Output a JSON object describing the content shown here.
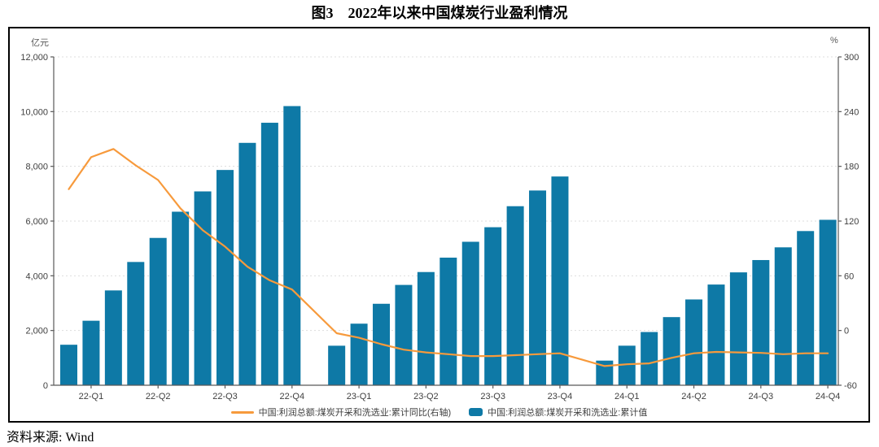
{
  "title": "图3　2022年以来中国煤炭行业盈利情况",
  "source_note": "资料来源: Wind",
  "legend": {
    "line_label": "中国:利润总额:煤炭开采和洗选业:累计同比(右轴)",
    "bar_label": "中国:利润总额:煤炭开采和洗选业:累计值"
  },
  "axes": {
    "left_unit": "亿元",
    "right_unit": "%",
    "left_tick_labels": [
      "0",
      "2,000",
      "4,000",
      "6,000",
      "8,000",
      "10,000",
      "12,000"
    ],
    "right_tick_labels": [
      "-60",
      "0",
      "60",
      "120",
      "180",
      "240",
      "300"
    ],
    "x_tick_labels": [
      "22-Q1",
      "22-Q2",
      "22-Q3",
      "22-Q4",
      "23-Q1",
      "23-Q2",
      "23-Q3",
      "23-Q4",
      "24-Q1",
      "24-Q2",
      "24-Q3",
      "24-Q4"
    ]
  },
  "colors": {
    "bar": "#0E79A6",
    "line": "#F79A3C",
    "grid": "#DDDDDD",
    "spine": "#595959",
    "tick_text": "#404040",
    "frame_border": "#000000"
  },
  "chart_data": {
    "type": "bar",
    "subtype": "bar+line combo, monthly cumulative values with quarterly x ticks",
    "x": [
      "2022-02",
      "2022-03",
      "2022-04",
      "2022-05",
      "2022-06",
      "2022-07",
      "2022-08",
      "2022-09",
      "2022-10",
      "2022-11",
      "2022-12",
      "2023-02",
      "2023-03",
      "2023-04",
      "2023-05",
      "2023-06",
      "2023-07",
      "2023-08",
      "2023-09",
      "2023-10",
      "2023-11",
      "2023-12",
      "2024-02",
      "2024-03",
      "2024-04",
      "2024-05",
      "2024-06",
      "2024-07",
      "2024-08",
      "2024-09",
      "2024-10",
      "2024-11",
      "2024-12"
    ],
    "series": [
      {
        "name": "中国:利润总额:煤炭开采和洗选业:累计值",
        "type": "bar",
        "axis": "left",
        "unit": "亿元",
        "values": [
          1480,
          2357,
          3465,
          4505,
          5384,
          6342,
          7084,
          7867,
          8858,
          9593,
          10202,
          1444,
          2250,
          2977,
          3666,
          4137,
          4663,
          5243,
          5775,
          6543,
          7117,
          7629,
          900,
          1445,
          1945,
          2490,
          3135,
          3680,
          4125,
          4575,
          5040,
          5635,
          6046
        ]
      },
      {
        "name": "中国:利润总额:煤炭开采和洗选业:累计同比(右轴)",
        "type": "line",
        "axis": "right",
        "unit": "%",
        "values": [
          155,
          190,
          199,
          181,
          165,
          134,
          110,
          92,
          70,
          55,
          45,
          -3,
          -8,
          -15,
          -21,
          -24,
          -26,
          -28,
          -28,
          -27,
          -26,
          -25,
          -39,
          -37,
          -36,
          -30,
          -25,
          -23.5,
          -24,
          -24.5,
          -26,
          -25,
          -25
        ]
      }
    ],
    "left_ylim": [
      0,
      12000
    ],
    "right_ylim": [
      -60,
      300
    ],
    "left_tick_step": 2000,
    "right_tick_step": 60,
    "months_per_year_block": 11,
    "x_tick_slots": [
      1,
      4,
      7,
      10,
      13,
      16,
      19,
      22,
      25,
      28,
      31,
      34
    ],
    "total_slots": 35,
    "gap_note": "no bars for 2023-01 and 2024-01 (empty slots)",
    "grid": "horizontal dashed only",
    "legend_position": "bottom-center"
  }
}
